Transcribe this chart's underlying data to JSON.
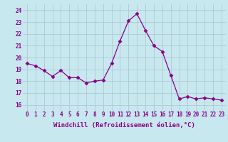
{
  "x": [
    0,
    1,
    2,
    3,
    4,
    5,
    6,
    7,
    8,
    9,
    10,
    11,
    12,
    13,
    14,
    15,
    16,
    17,
    18,
    19,
    20,
    21,
    22,
    23
  ],
  "y": [
    19.5,
    19.3,
    18.9,
    18.4,
    18.9,
    18.3,
    18.3,
    17.85,
    18.0,
    18.1,
    19.5,
    21.4,
    23.1,
    23.7,
    22.3,
    21.0,
    20.5,
    18.5,
    16.5,
    16.7,
    16.5,
    16.6,
    16.5,
    16.4
  ],
  "line_color": "#880088",
  "marker": "D",
  "marker_size": 2.5,
  "bg_color": "#c8e8f0",
  "grid_color": "#b0c8d0",
  "xlabel": "Windchill (Refroidissement éolien,°C)",
  "xlabel_fontsize": 6.5,
  "yticks": [
    16,
    17,
    18,
    19,
    20,
    21,
    22,
    23,
    24
  ],
  "xticks": [
    0,
    1,
    2,
    3,
    4,
    5,
    6,
    7,
    8,
    9,
    10,
    11,
    12,
    13,
    14,
    15,
    16,
    17,
    18,
    19,
    20,
    21,
    22,
    23
  ],
  "ylim": [
    15.5,
    24.5
  ],
  "xlim": [
    -0.5,
    23.5
  ],
  "tick_color": "#880088",
  "tick_fontsize": 5.5
}
